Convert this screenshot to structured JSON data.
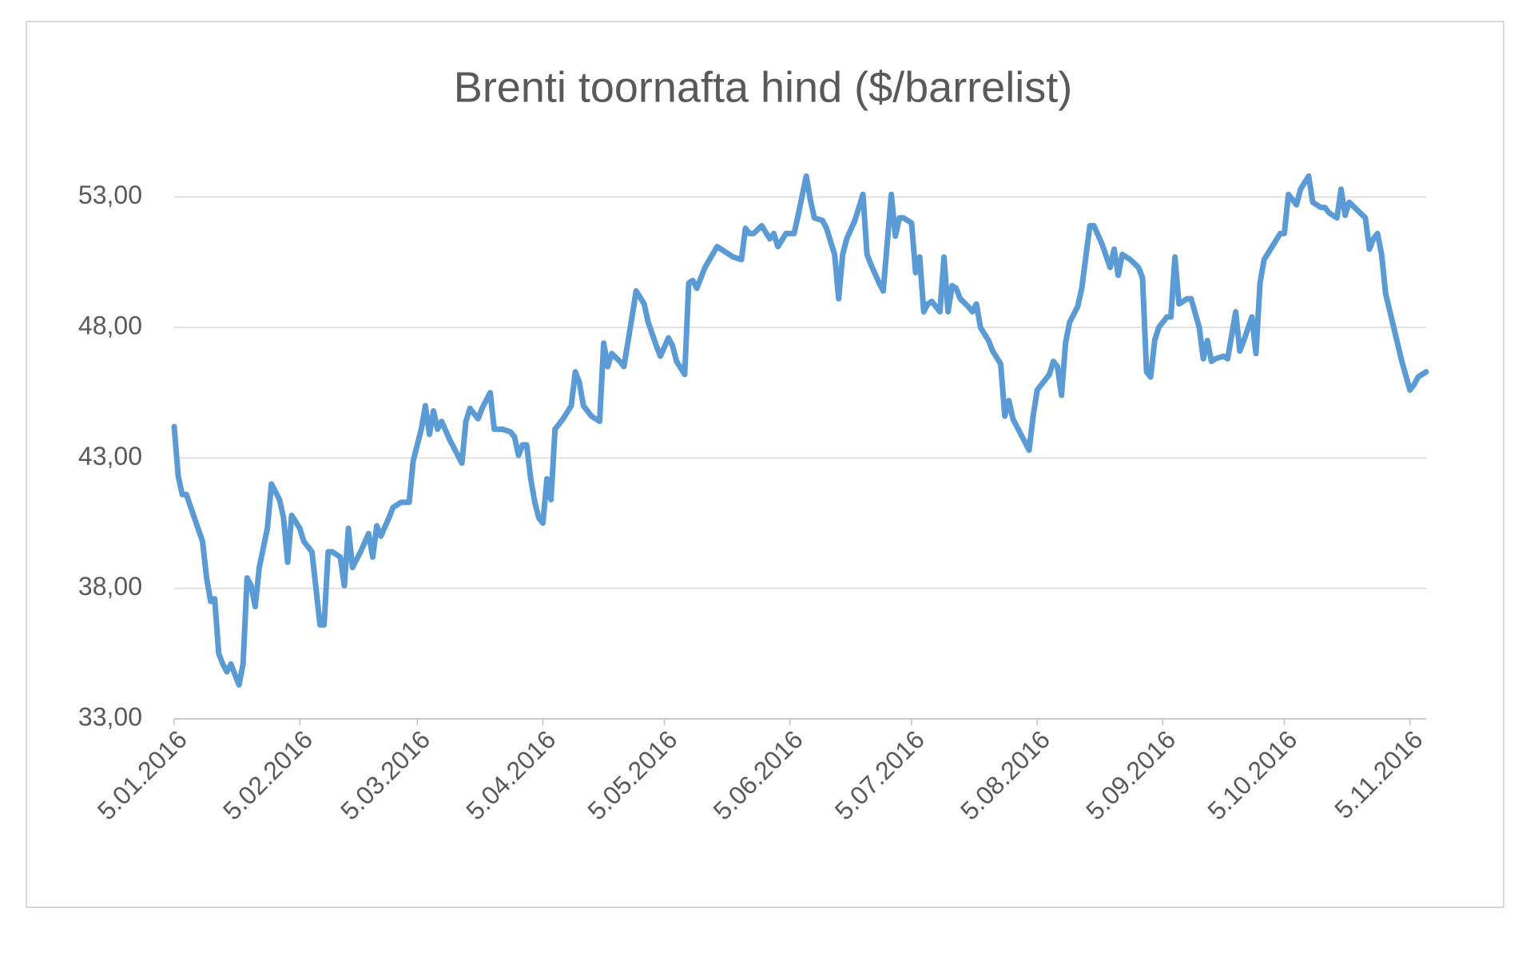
{
  "chart_data": {
    "type": "line",
    "title": "Brenti toornafta hind ($/barrelist)",
    "color": "#5b9bd5",
    "grid": true,
    "x": [
      "2016-01-05",
      "2016-01-06",
      "2016-01-07",
      "2016-01-08",
      "2016-01-10",
      "2016-01-12",
      "2016-01-13",
      "2016-01-14",
      "2016-01-15",
      "2016-01-16",
      "2016-01-17",
      "2016-01-18",
      "2016-01-19",
      "2016-01-20",
      "2016-01-21",
      "2016-01-22",
      "2016-01-23",
      "2016-01-24",
      "2016-01-25",
      "2016-01-26",
      "2016-01-28",
      "2016-01-29",
      "2016-01-31",
      "2016-02-01",
      "2016-02-02",
      "2016-02-03",
      "2016-02-05",
      "2016-02-06",
      "2016-02-08",
      "2016-02-10",
      "2016-02-11",
      "2016-02-12",
      "2016-02-13",
      "2016-02-15",
      "2016-02-16",
      "2016-02-17",
      "2016-02-18",
      "2016-02-20",
      "2016-02-22",
      "2016-02-23",
      "2016-02-24",
      "2016-02-25",
      "2016-02-27",
      "2016-02-28",
      "2016-03-01",
      "2016-03-03",
      "2016-03-04",
      "2016-03-06",
      "2016-03-07",
      "2016-03-08",
      "2016-03-09",
      "2016-03-10",
      "2016-03-11",
      "2016-03-13",
      "2016-03-16",
      "2016-03-17",
      "2016-03-18",
      "2016-03-20",
      "2016-03-21",
      "2016-03-23",
      "2016-03-24",
      "2016-03-26",
      "2016-03-28",
      "2016-03-29",
      "2016-03-30",
      "2016-03-31",
      "2016-04-01",
      "2016-04-02",
      "2016-04-03",
      "2016-04-04",
      "2016-04-05",
      "2016-04-06",
      "2016-04-07",
      "2016-04-08",
      "2016-04-10",
      "2016-04-12",
      "2016-04-13",
      "2016-04-14",
      "2016-04-15",
      "2016-04-17",
      "2016-04-19",
      "2016-04-20",
      "2016-04-21",
      "2016-04-22",
      "2016-04-24",
      "2016-04-25",
      "2016-04-27",
      "2016-04-28",
      "2016-04-30",
      "2016-05-01",
      "2016-05-03",
      "2016-05-04",
      "2016-05-06",
      "2016-05-07",
      "2016-05-08",
      "2016-05-10",
      "2016-05-11",
      "2016-05-12",
      "2016-05-13",
      "2016-05-15",
      "2016-05-18",
      "2016-05-20",
      "2016-05-22",
      "2016-05-24",
      "2016-05-25",
      "2016-05-26",
      "2016-05-27",
      "2016-05-29",
      "2016-05-31",
      "2016-06-01",
      "2016-06-02",
      "2016-06-04",
      "2016-06-06",
      "2016-06-07",
      "2016-06-09",
      "2016-06-10",
      "2016-06-11",
      "2016-06-13",
      "2016-06-14",
      "2016-06-16",
      "2016-06-17",
      "2016-06-18",
      "2016-06-19",
      "2016-06-21",
      "2016-06-22",
      "2016-06-23",
      "2016-06-24",
      "2016-06-25",
      "2016-06-27",
      "2016-06-28",
      "2016-06-30",
      "2016-07-01",
      "2016-07-02",
      "2016-07-03",
      "2016-07-05",
      "2016-07-06",
      "2016-07-07",
      "2016-07-08",
      "2016-07-09",
      "2016-07-10",
      "2016-07-12",
      "2016-07-13",
      "2016-07-14",
      "2016-07-15",
      "2016-07-16",
      "2016-07-17",
      "2016-07-19",
      "2016-07-20",
      "2016-07-21",
      "2016-07-22",
      "2016-07-24",
      "2016-07-25",
      "2016-07-27",
      "2016-07-28",
      "2016-07-29",
      "2016-07-30",
      "2016-08-01",
      "2016-08-03",
      "2016-08-04",
      "2016-08-05",
      "2016-08-06",
      "2016-08-08",
      "2016-08-09",
      "2016-08-10",
      "2016-08-11",
      "2016-08-12",
      "2016-08-13",
      "2016-08-15",
      "2016-08-16",
      "2016-08-18",
      "2016-08-19",
      "2016-08-21",
      "2016-08-23",
      "2016-08-24",
      "2016-08-25",
      "2016-08-26",
      "2016-08-28",
      "2016-08-30",
      "2016-08-31",
      "2016-09-01",
      "2016-09-02",
      "2016-09-03",
      "2016-09-04",
      "2016-09-06",
      "2016-09-07",
      "2016-09-08",
      "2016-09-09",
      "2016-09-11",
      "2016-09-12",
      "2016-09-14",
      "2016-09-15",
      "2016-09-16",
      "2016-09-17",
      "2016-09-18",
      "2016-09-20",
      "2016-09-21",
      "2016-09-23",
      "2016-09-24",
      "2016-09-25",
      "2016-09-27",
      "2016-09-28",
      "2016-09-29",
      "2016-09-30",
      "2016-10-02",
      "2016-10-04",
      "2016-10-05",
      "2016-10-06",
      "2016-10-08",
      "2016-10-09",
      "2016-10-11",
      "2016-10-12",
      "2016-10-14",
      "2016-10-15",
      "2016-10-16",
      "2016-10-18",
      "2016-10-19",
      "2016-10-20",
      "2016-10-21",
      "2016-10-23",
      "2016-10-25",
      "2016-10-26",
      "2016-10-27",
      "2016-10-28",
      "2016-10-29",
      "2016-10-30",
      "2016-11-01",
      "2016-11-03",
      "2016-11-05",
      "2016-11-06",
      "2016-11-07",
      "2016-11-09"
    ],
    "values": [
      44.2,
      42.3,
      41.6,
      41.6,
      40.7,
      39.8,
      38.4,
      37.5,
      37.6,
      35.5,
      35.1,
      34.8,
      35.1,
      34.7,
      34.3,
      35.1,
      38.4,
      38.1,
      37.3,
      38.8,
      40.3,
      42.0,
      41.4,
      40.7,
      39.0,
      40.8,
      40.3,
      39.8,
      39.4,
      36.6,
      36.6,
      39.4,
      39.4,
      39.2,
      38.1,
      40.3,
      38.8,
      39.4,
      40.1,
      39.2,
      40.4,
      40.0,
      40.7,
      41.1,
      41.3,
      41.3,
      42.9,
      44.1,
      45.0,
      43.9,
      44.8,
      44.1,
      44.4,
      43.7,
      42.8,
      44.4,
      44.9,
      44.5,
      44.9,
      45.5,
      44.1,
      44.1,
      44.0,
      43.8,
      43.1,
      43.5,
      43.5,
      42.2,
      41.3,
      40.7,
      40.5,
      42.2,
      41.4,
      44.1,
      44.5,
      45.0,
      46.3,
      45.9,
      45.0,
      44.6,
      44.4,
      47.4,
      46.5,
      47.0,
      46.7,
      46.5,
      48.4,
      49.4,
      48.9,
      48.2,
      47.3,
      46.9,
      47.6,
      47.3,
      46.7,
      46.2,
      49.7,
      49.8,
      49.5,
      50.3,
      51.1,
      50.9,
      50.7,
      50.6,
      51.8,
      51.6,
      51.6,
      51.9,
      51.4,
      51.6,
      51.1,
      51.6,
      51.6,
      52.3,
      53.8,
      52.9,
      52.2,
      52.1,
      51.8,
      50.8,
      49.1,
      50.8,
      51.4,
      52.1,
      52.6,
      53.1,
      50.8,
      50.4,
      49.7,
      49.4,
      53.1,
      51.5,
      52.2,
      52.2,
      52.0,
      50.1,
      50.7,
      48.6,
      48.9,
      49.0,
      48.6,
      50.7,
      48.6,
      49.6,
      49.5,
      49.1,
      48.8,
      48.6,
      48.9,
      48.0,
      47.5,
      47.1,
      46.6,
      44.6,
      45.2,
      44.5,
      43.9,
      43.3,
      44.6,
      45.6,
      45.8,
      46.2,
      46.7,
      46.5,
      45.4,
      47.4,
      48.2,
      48.8,
      49.5,
      51.9,
      51.9,
      51.2,
      50.3,
      51.0,
      50.0,
      50.8,
      50.6,
      50.3,
      49.9,
      46.3,
      46.1,
      47.5,
      48.0,
      48.4,
      48.4,
      50.7,
      48.9,
      49.1,
      49.1,
      48.0,
      46.8,
      47.5,
      46.7,
      46.8,
      46.9,
      46.8,
      48.6,
      47.1,
      47.5,
      48.4,
      47.0,
      49.7,
      50.6,
      51.1,
      51.6,
      51.6,
      53.1,
      52.7,
      53.3,
      53.8,
      52.8,
      52.6,
      52.6,
      52.4,
      52.2,
      53.3,
      52.3,
      52.8,
      52.5,
      52.2,
      51.0,
      51.4,
      51.6,
      50.8,
      49.3,
      48.0,
      46.7,
      45.6,
      45.8,
      46.1,
      46.3
    ],
    "xlim": [
      "2016-01-05",
      "2016-11-09"
    ],
    "xticks": [
      {
        "value": "2016-01-05",
        "label": "5.01.2016"
      },
      {
        "value": "2016-02-05",
        "label": "5.02.2016"
      },
      {
        "value": "2016-03-05",
        "label": "5.03.2016"
      },
      {
        "value": "2016-04-05",
        "label": "5.04.2016"
      },
      {
        "value": "2016-05-05",
        "label": "5.05.2016"
      },
      {
        "value": "2016-06-05",
        "label": "5.06.2016"
      },
      {
        "value": "2016-07-05",
        "label": "5.07.2016"
      },
      {
        "value": "2016-08-05",
        "label": "5.08.2016"
      },
      {
        "value": "2016-09-05",
        "label": "5.09.2016"
      },
      {
        "value": "2016-10-05",
        "label": "5.10.2016"
      },
      {
        "value": "2016-11-05",
        "label": "5.11.2016"
      }
    ],
    "ylim": [
      33,
      54
    ],
    "yticks": [
      {
        "value": 33,
        "label": "33,00"
      },
      {
        "value": 38,
        "label": "38,00"
      },
      {
        "value": 43,
        "label": "43,00"
      },
      {
        "value": 48,
        "label": "48,00"
      },
      {
        "value": 53,
        "label": "53,00"
      }
    ]
  }
}
